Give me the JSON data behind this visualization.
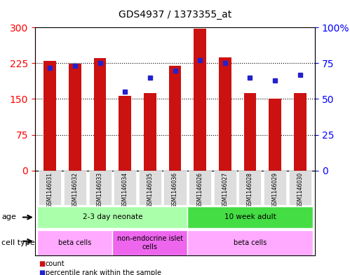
{
  "title": "GDS4937 / 1373355_at",
  "samples": [
    "GSM1146031",
    "GSM1146032",
    "GSM1146033",
    "GSM1146034",
    "GSM1146035",
    "GSM1146036",
    "GSM1146026",
    "GSM1146027",
    "GSM1146028",
    "GSM1146029",
    "GSM1146030"
  ],
  "counts": [
    230,
    224,
    236,
    157,
    163,
    220,
    298,
    237,
    162,
    150,
    162
  ],
  "percentiles": [
    72,
    73,
    75,
    55,
    65,
    70,
    77,
    75,
    65,
    63,
    67
  ],
  "ylim_left": [
    0,
    300
  ],
  "ylim_right": [
    0,
    100
  ],
  "yticks_left": [
    0,
    75,
    150,
    225,
    300
  ],
  "yticks_right": [
    0,
    25,
    50,
    75,
    100
  ],
  "bar_color": "#cc1111",
  "dot_color": "#2222cc",
  "bg_color": "#ffffff",
  "plot_bg": "#ffffff",
  "age_groups": [
    {
      "label": "2-3 day neonate",
      "start": 0,
      "end": 5,
      "color": "#aaffaa"
    },
    {
      "label": "10 week adult",
      "start": 6,
      "end": 10,
      "color": "#44dd44"
    }
  ],
  "cell_type_groups": [
    {
      "label": "beta cells",
      "start": 0,
      "end": 2,
      "color": "#ffaaff"
    },
    {
      "label": "non-endocrine islet\ncells",
      "start": 3,
      "end": 5,
      "color": "#ee66ee"
    },
    {
      "label": "beta cells",
      "start": 6,
      "end": 10,
      "color": "#ffaaff"
    }
  ],
  "legend_items": [
    {
      "color": "#cc1111",
      "label": "count"
    },
    {
      "color": "#2222cc",
      "label": "percentile rank within the sample"
    }
  ],
  "tick_label_bg": "#dddddd"
}
